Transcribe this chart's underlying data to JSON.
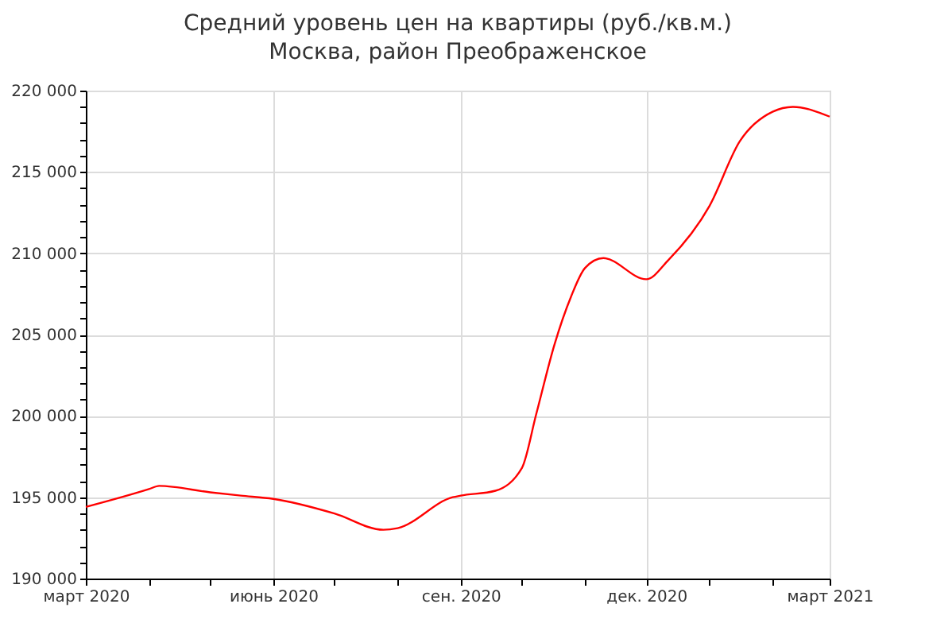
{
  "chart_data": {
    "type": "line",
    "title": "Средний уровень цен на квартиры (руб./кв.м.)",
    "subtitle": "Москва, район Преображенское",
    "x": [
      "2020-03-01",
      "2020-04-01",
      "2020-04-06",
      "2020-05-01",
      "2020-05-16",
      "2020-06-01",
      "2020-07-01",
      "2020-07-25",
      "2020-08-01",
      "2020-08-28",
      "2020-09-01",
      "2020-09-18",
      "2020-10-01",
      "2020-10-08",
      "2020-10-17",
      "2020-10-25",
      "2020-11-01",
      "2020-11-10",
      "2020-12-01",
      "2020-12-12",
      "2021-01-01",
      "2021-01-16",
      "2021-02-01",
      "2021-02-11",
      "2021-03-01"
    ],
    "series": [
      {
        "color": "#ff0000",
        "values": [
          194400,
          195500,
          195700,
          195300,
          195100,
          194900,
          194000,
          193000,
          193100,
          195000,
          195100,
          195400,
          196800,
          200100,
          204400,
          207300,
          209100,
          209700,
          208400,
          209600,
          212900,
          216900,
          218700,
          219000,
          218400
        ]
      }
    ],
    "xlim": [
      "2020-03-01",
      "2021-03-01"
    ],
    "xticks": [
      {
        "value": "2020-03-01",
        "label": "март 2020"
      },
      {
        "value": "2020-04-01",
        "label": null
      },
      {
        "value": "2020-05-01",
        "label": null
      },
      {
        "value": "2020-06-01",
        "label": "июнь 2020"
      },
      {
        "value": "2020-07-01",
        "label": null
      },
      {
        "value": "2020-08-01",
        "label": null
      },
      {
        "value": "2020-09-01",
        "label": "сен. 2020"
      },
      {
        "value": "2020-10-01",
        "label": null
      },
      {
        "value": "2020-11-01",
        "label": null
      },
      {
        "value": "2020-12-01",
        "label": "дек. 2020"
      },
      {
        "value": "2021-01-01",
        "label": null
      },
      {
        "value": "2021-02-01",
        "label": null
      },
      {
        "value": "2021-03-01",
        "label": "март 2021"
      }
    ],
    "ylim": [
      190000,
      220000
    ],
    "yticks": [
      {
        "value": 190000,
        "label": "190 000"
      },
      {
        "value": 191000,
        "label": null
      },
      {
        "value": 192000,
        "label": null
      },
      {
        "value": 193000,
        "label": null
      },
      {
        "value": 194000,
        "label": null
      },
      {
        "value": 195000,
        "label": "195 000"
      },
      {
        "value": 196000,
        "label": null
      },
      {
        "value": 197000,
        "label": null
      },
      {
        "value": 198000,
        "label": null
      },
      {
        "value": 199000,
        "label": null
      },
      {
        "value": 200000,
        "label": "200 000"
      },
      {
        "value": 201000,
        "label": null
      },
      {
        "value": 202000,
        "label": null
      },
      {
        "value": 203000,
        "label": null
      },
      {
        "value": 204000,
        "label": null
      },
      {
        "value": 205000,
        "label": "205 000"
      },
      {
        "value": 206000,
        "label": null
      },
      {
        "value": 207000,
        "label": null
      },
      {
        "value": 208000,
        "label": null
      },
      {
        "value": 209000,
        "label": null
      },
      {
        "value": 210000,
        "label": "210 000"
      },
      {
        "value": 211000,
        "label": null
      },
      {
        "value": 212000,
        "label": null
      },
      {
        "value": 213000,
        "label": null
      },
      {
        "value": 214000,
        "label": null
      },
      {
        "value": 215000,
        "label": "215 000"
      },
      {
        "value": 216000,
        "label": null
      },
      {
        "value": 217000,
        "label": null
      },
      {
        "value": 218000,
        "label": null
      },
      {
        "value": 219000,
        "label": null
      },
      {
        "value": 220000,
        "label": "220 000"
      }
    ],
    "grid": true
  }
}
